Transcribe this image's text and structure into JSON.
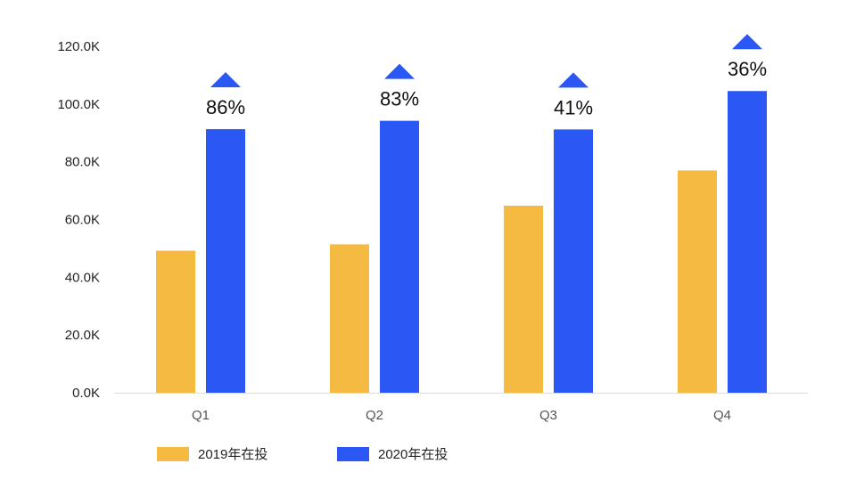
{
  "chart_data": {
    "type": "bar",
    "categories": [
      "Q1",
      "Q2",
      "Q3",
      "Q4"
    ],
    "series": [
      {
        "name": "2019年在投",
        "color": "#F5BA42",
        "values": [
          49.2,
          51.4,
          64.8,
          77.0
        ]
      },
      {
        "name": "2020年在投",
        "color": "#2B57F5",
        "values": [
          91.3,
          94.2,
          91.2,
          104.5
        ]
      }
    ],
    "growth_labels": [
      "86%",
      "83%",
      "41%",
      "36%"
    ],
    "growth_marker": "up-triangle-icon",
    "growth_marker_color": "#2B57F5",
    "y_ticks": [
      "0.0K",
      "20.0K",
      "40.0K",
      "60.0K",
      "80.0K",
      "100.0K",
      "120.0K"
    ],
    "ylim": [
      0,
      120
    ],
    "grid": false,
    "legend_position": "bottom-left"
  }
}
